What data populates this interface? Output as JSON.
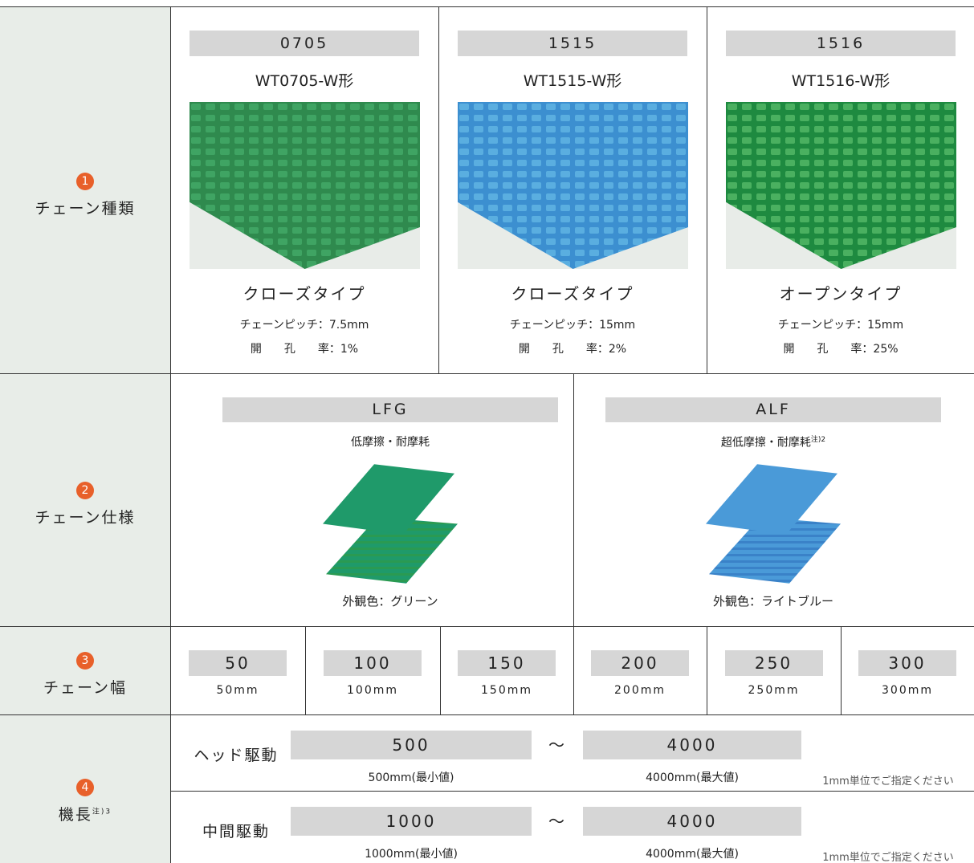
{
  "chain_type": {
    "number": "1",
    "label": "チェーン種類",
    "items": [
      {
        "code": "0705",
        "model": "WT0705-W形",
        "type": "クローズタイプ",
        "pitch": "チェーンピッチ：7.5mm",
        "open_ratio": "開　　孔　　率：1%"
      },
      {
        "code": "1515",
        "model": "WT1515-W形",
        "type": "クローズタイプ",
        "pitch": "チェーンピッチ：15mm",
        "open_ratio": "開　　孔　　率：2%"
      },
      {
        "code": "1516",
        "model": "WT1516-W形",
        "type": "オープンタイプ",
        "pitch": "チェーンピッチ：15mm",
        "open_ratio": "開　　孔　　率：25%"
      }
    ]
  },
  "chain_spec": {
    "number": "2",
    "label": "チェーン仕様",
    "items": [
      {
        "code": "LFG",
        "feature": "低摩擦・耐摩耗",
        "color": "外観色：グリーン"
      },
      {
        "code": "ALF",
        "feature": "超低摩擦・耐摩耗",
        "note": "注)2",
        "color": "外観色：ライトブルー"
      }
    ]
  },
  "chain_width": {
    "number": "3",
    "label": "チェーン幅",
    "items": [
      {
        "code": "50",
        "size": "50mm"
      },
      {
        "code": "100",
        "size": "100mm"
      },
      {
        "code": "150",
        "size": "150mm"
      },
      {
        "code": "200",
        "size": "200mm"
      },
      {
        "code": "250",
        "size": "250mm"
      },
      {
        "code": "300",
        "size": "300mm"
      }
    ]
  },
  "length": {
    "number": "4",
    "label": "機長",
    "note": "注)3",
    "rows": [
      {
        "drive": "ヘッド駆動",
        "min": "500",
        "min_label": "500mm(最小値)",
        "tilde": "〜",
        "max": "4000",
        "max_label": "4000mm(最大値)",
        "hint": "1mm単位でご指定ください"
      },
      {
        "drive": "中間駆動",
        "min": "1000",
        "min_label": "1000mm(最小値)",
        "tilde": "〜",
        "max": "4000",
        "max_label": "4000mm(最大値)",
        "hint": "1mm単位でご指定ください"
      }
    ]
  }
}
